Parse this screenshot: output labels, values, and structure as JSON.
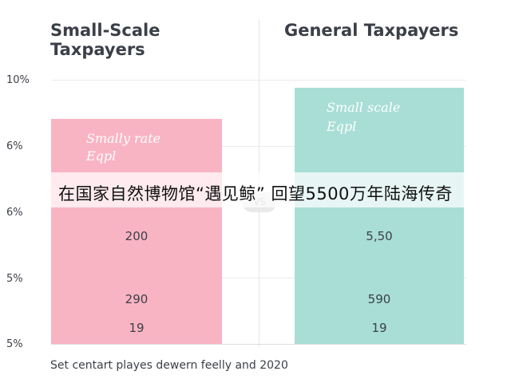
{
  "panels": {
    "left_heading_line1": "Small-Scale",
    "left_heading_line2": "Taxpayers",
    "right_heading": "General Taxpayers",
    "left_note_line1": "Smally rate",
    "left_note_line2": "Eqpl",
    "right_note_line1": "Small scale",
    "right_note_line2": "Eqpl",
    "vs": "VS"
  },
  "banner": {
    "text": "在国家自然博物馆“遇见鲸” 回望5500万年陆海传奇"
  },
  "caption": "Set centart playes dewern feelly and 2020",
  "colors": {
    "left": "#f9b4c4",
    "right": "#a8ded6"
  },
  "chart_data": {
    "type": "table",
    "yticks": [
      "10%",
      "6%",
      "6%",
      "5%",
      "5%"
    ],
    "series": [
      {
        "name": "Small-Scale Taxpayers",
        "values": [
          "200",
          "290",
          "19"
        ]
      },
      {
        "name": "General Taxpayers",
        "values": [
          "5,50",
          "590",
          "19"
        ]
      }
    ]
  }
}
